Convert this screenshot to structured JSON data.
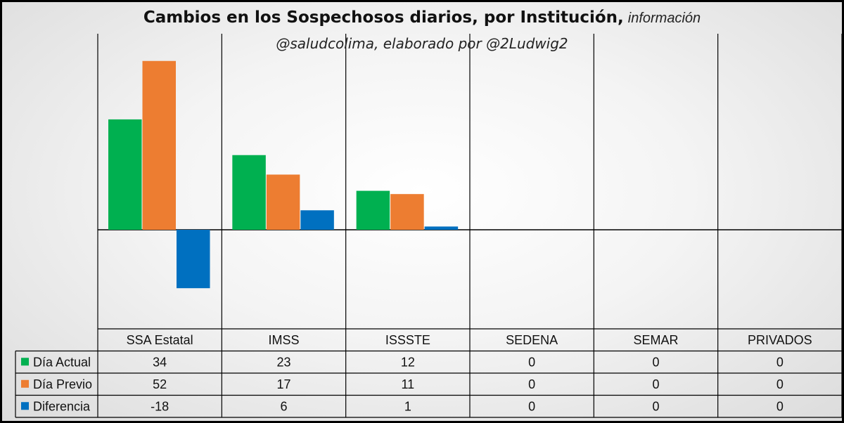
{
  "title": "Cambios en los Sospechosos diarios, por Institución,",
  "title_tail": "información",
  "subtitle": "@saludcolima, elaborado por @2Ludwig2",
  "chart_data": {
    "type": "bar",
    "categories": [
      "SSA Estatal",
      "IMSS",
      "ISSSTE",
      "SEDENA",
      "SEMAR",
      "PRIVADOS"
    ],
    "series": [
      {
        "name": "Día Actual",
        "color": "#00b050",
        "values": [
          34,
          23,
          12,
          0,
          0,
          0
        ]
      },
      {
        "name": "Día Previo",
        "color": "#ed7d31",
        "values": [
          52,
          17,
          11,
          0,
          0,
          0
        ]
      },
      {
        "name": "Diferencia",
        "color": "#0070c0",
        "values": [
          -18,
          6,
          1,
          0,
          0,
          0
        ]
      }
    ],
    "ylim": [
      -30,
      57
    ],
    "grid": true,
    "legend": "data-table-left"
  }
}
